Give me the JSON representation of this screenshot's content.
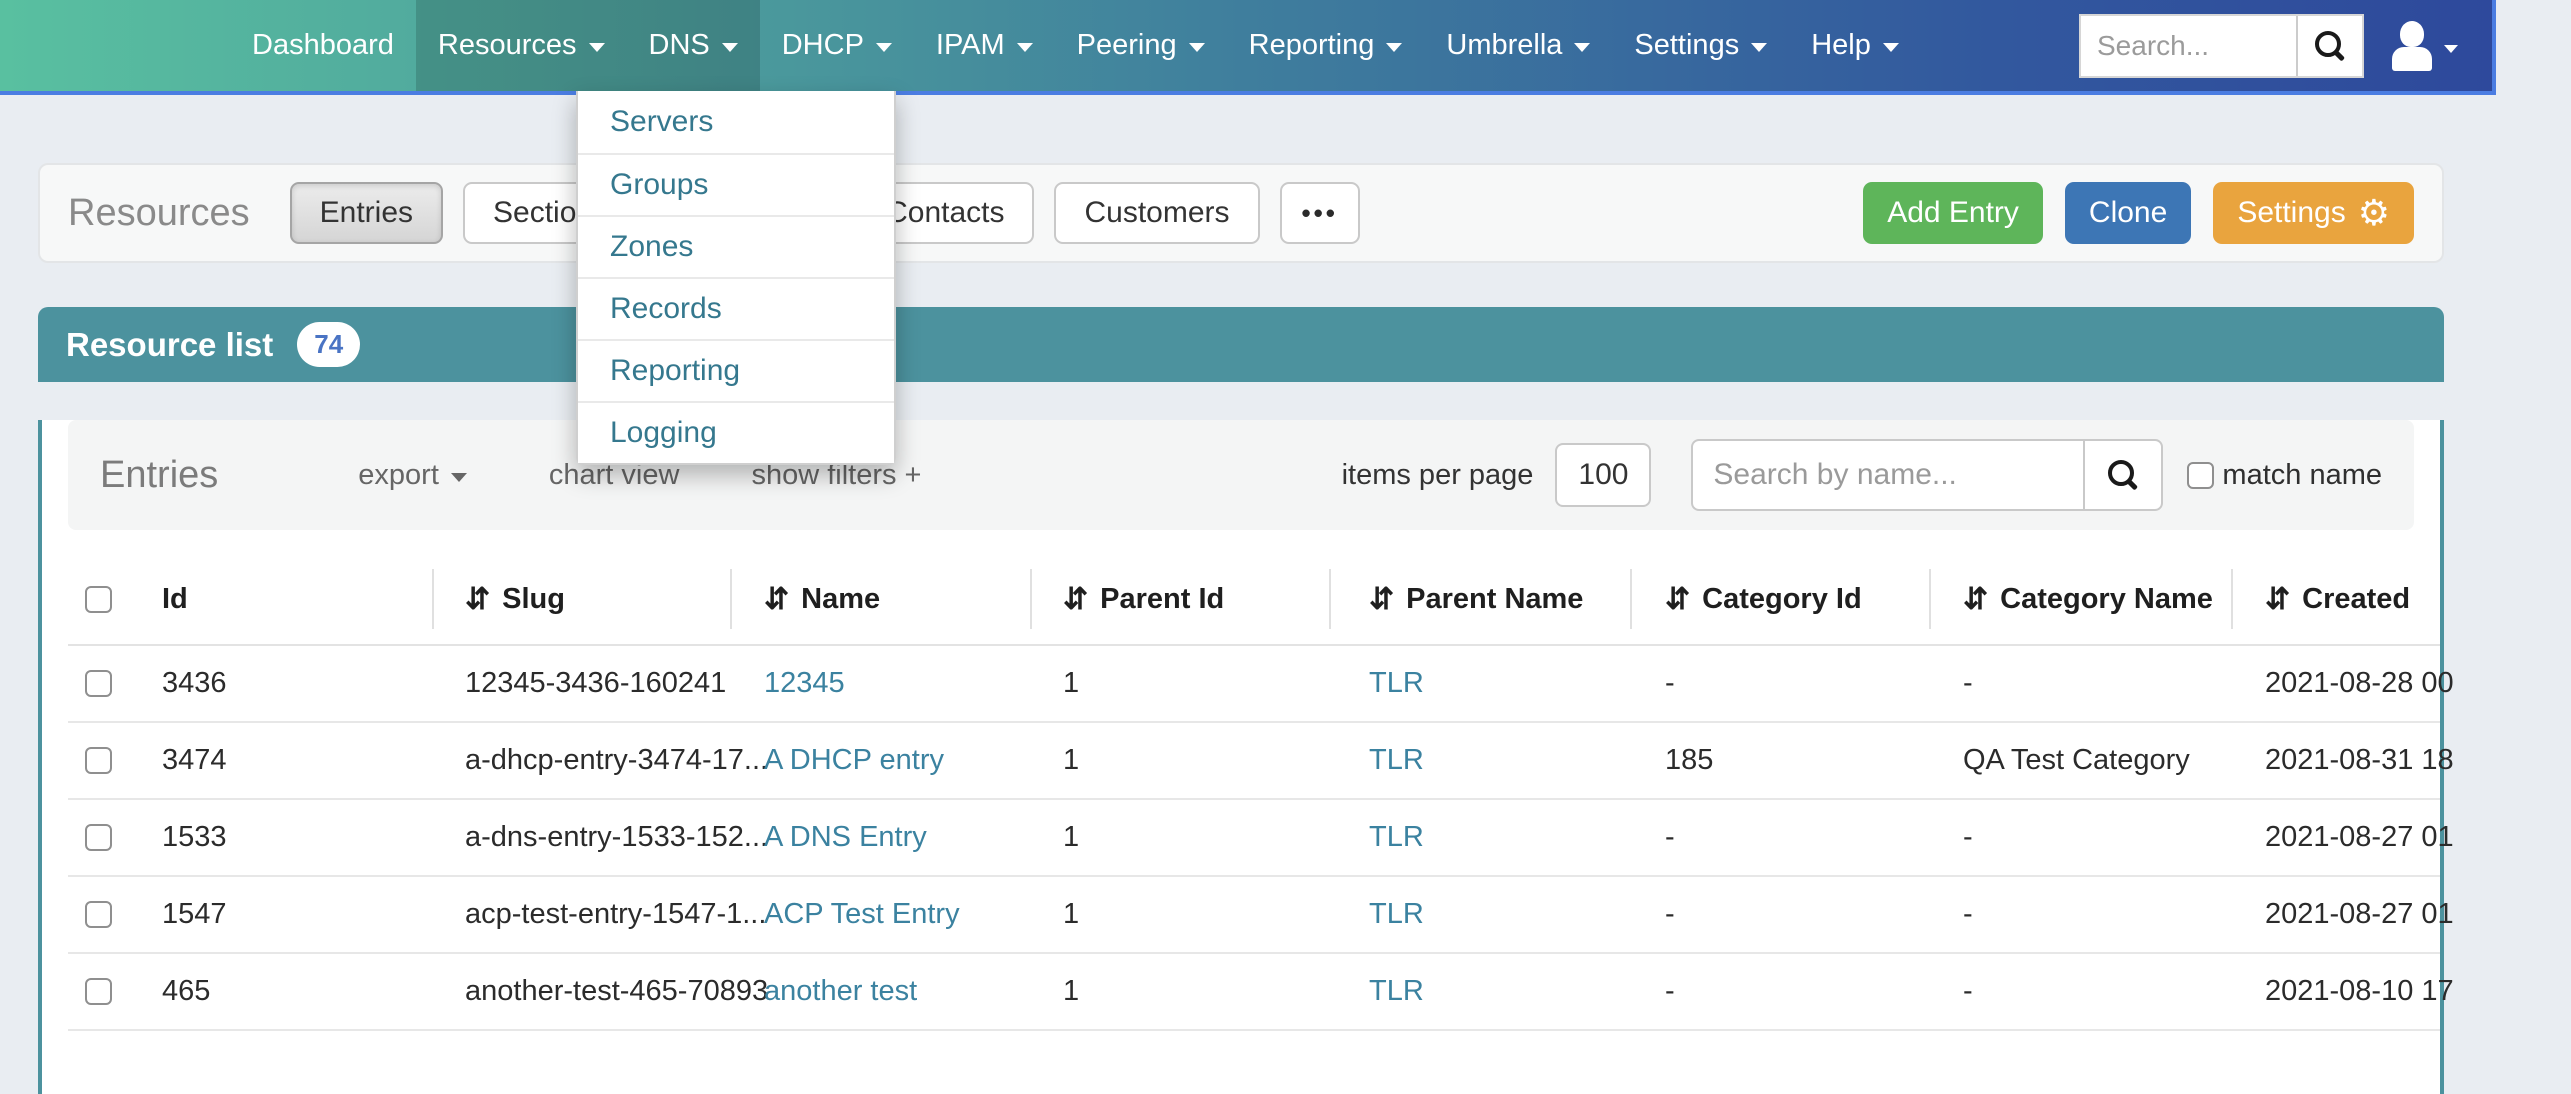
{
  "icons": {
    "sort": "⇵",
    "gear": "⚙"
  },
  "navbar": {
    "items": [
      {
        "label": "Dashboard",
        "caret": false,
        "active": false
      },
      {
        "label": "Resources",
        "caret": true,
        "active": true
      },
      {
        "label": "DNS",
        "caret": true,
        "active": true
      },
      {
        "label": "DHCP",
        "caret": true,
        "active": false
      },
      {
        "label": "IPAM",
        "caret": true,
        "active": false
      },
      {
        "label": "Peering",
        "caret": true,
        "active": false
      },
      {
        "label": "Reporting",
        "caret": true,
        "active": false
      },
      {
        "label": "Umbrella",
        "caret": true,
        "active": false
      },
      {
        "label": "Settings",
        "caret": true,
        "active": false
      },
      {
        "label": "Help",
        "caret": true,
        "active": false
      }
    ],
    "search_placeholder": "Search..."
  },
  "dns_menu": {
    "items": [
      "Servers",
      "Groups",
      "Zones",
      "Records",
      "Reporting",
      "Logging"
    ]
  },
  "page_header": {
    "title": "Resources",
    "tabs": [
      {
        "key": "entries",
        "label": "Entries",
        "active": true
      },
      {
        "key": "sections",
        "label": "Sections"
      },
      {
        "key": "contacts",
        "label": "Contacts"
      },
      {
        "key": "customers",
        "label": "Customers"
      },
      {
        "key": "more",
        "label": "•••",
        "ellipsis": true
      }
    ],
    "actions": [
      {
        "label": "Add Entry",
        "color": "#5eb55a"
      },
      {
        "label": "Clone",
        "color": "#3d76b5"
      },
      {
        "label": "Settings",
        "color": "#e9a43e",
        "gear": true
      }
    ]
  },
  "list_header": {
    "title": "Resource list",
    "count": "74"
  },
  "toolbar": {
    "title": "Entries",
    "export_label": "export",
    "chart_view_label": "chart view",
    "show_filters_label": "show filters +",
    "items_per_page_label": "items per page",
    "items_per_page_value": "100",
    "search_placeholder": "Search by name...",
    "match_name_label": "match name"
  },
  "table": {
    "columns": [
      {
        "key": "id",
        "label": "Id",
        "sortable": false
      },
      {
        "key": "slug",
        "label": "Slug",
        "sortable": true
      },
      {
        "key": "name",
        "label": "Name",
        "sortable": true,
        "link": true
      },
      {
        "key": "parent_id",
        "label": "Parent Id",
        "sortable": true
      },
      {
        "key": "parent_name",
        "label": "Parent Name",
        "sortable": true,
        "link": true
      },
      {
        "key": "category_id",
        "label": "Category Id",
        "sortable": true
      },
      {
        "key": "category_name",
        "label": "Category Name",
        "sortable": true
      },
      {
        "key": "created",
        "label": "Created",
        "sortable": true
      }
    ],
    "rows": [
      {
        "id": "3436",
        "slug": "12345-3436-160241",
        "name": "12345",
        "parent_id": "1",
        "parent_name": "TLR",
        "category_id": "-",
        "category_name": "-",
        "created": "2021-08-28 00"
      },
      {
        "id": "3474",
        "slug": "a-dhcp-entry-3474-17...",
        "name": "A DHCP entry",
        "parent_id": "1",
        "parent_name": "TLR",
        "category_id": "185",
        "category_name": "QA Test Category",
        "created": "2021-08-31 18"
      },
      {
        "id": "1533",
        "slug": "a-dns-entry-1533-152...",
        "name": "A DNS Entry",
        "parent_id": "1",
        "parent_name": "TLR",
        "category_id": "-",
        "category_name": "-",
        "created": "2021-08-27 01"
      },
      {
        "id": "1547",
        "slug": "acp-test-entry-1547-1...",
        "name": "ACP Test Entry",
        "parent_id": "1",
        "parent_name": "TLR",
        "category_id": "-",
        "category_name": "-",
        "created": "2021-08-27 01"
      },
      {
        "id": "465",
        "slug": "another-test-465-70893",
        "name": "another test",
        "parent_id": "1",
        "parent_name": "TLR",
        "category_id": "-",
        "category_name": "-",
        "created": "2021-08-10 17"
      }
    ]
  }
}
